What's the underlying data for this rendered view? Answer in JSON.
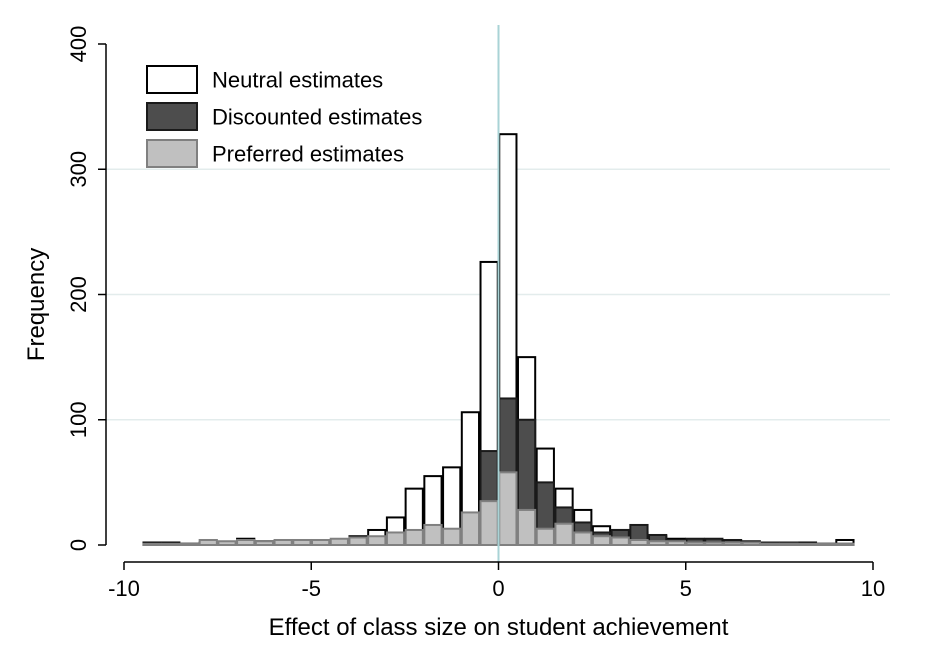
{
  "chart_data": {
    "type": "bar",
    "subtype": "overlaid-histogram",
    "title": "",
    "xlabel": "Effect of class size on student achievement",
    "ylabel": "Frequency",
    "xlim": [
      -10,
      10
    ],
    "ylim": [
      0,
      400
    ],
    "xticks": [
      -10,
      -5,
      0,
      5,
      10
    ],
    "yticks": [
      0,
      100,
      200,
      300,
      400
    ],
    "bin_width": 0.5,
    "bin_starts": [
      -9.5,
      -9.0,
      -8.5,
      -8.0,
      -7.5,
      -7.0,
      -6.5,
      -6.0,
      -5.5,
      -5.0,
      -4.5,
      -4.0,
      -3.5,
      -3.0,
      -2.5,
      -2.0,
      -1.5,
      -1.0,
      -0.5,
      0.0,
      0.5,
      1.0,
      1.5,
      2.0,
      2.5,
      3.0,
      3.5,
      4.0,
      4.5,
      5.0,
      5.5,
      6.0,
      6.5,
      7.0,
      7.5,
      8.0,
      8.5,
      9.0
    ],
    "vertical_reference_line": 0,
    "grid": "horizontal",
    "legend_position": "top-left",
    "series": [
      {
        "name": "Neutral estimates",
        "fill": "#ffffff",
        "stroke": "#000000",
        "values": [
          2,
          2,
          1,
          2,
          2,
          5,
          3,
          3,
          3,
          3,
          4,
          7,
          12,
          22,
          45,
          55,
          62,
          106,
          226,
          328,
          150,
          77,
          45,
          28,
          15,
          12,
          10,
          7,
          5,
          4,
          4,
          3,
          2,
          2,
          2,
          2,
          1,
          4
        ]
      },
      {
        "name": "Discounted estimates",
        "fill": "#4d4d4d",
        "stroke": "#1a1a1a",
        "values": [
          1,
          1,
          1,
          1,
          1,
          2,
          2,
          2,
          2,
          2,
          2,
          3,
          3,
          4,
          5,
          6,
          7,
          18,
          75,
          117,
          100,
          50,
          30,
          18,
          10,
          12,
          16,
          8,
          4,
          5,
          5,
          4,
          3,
          2,
          2,
          1,
          1,
          1
        ]
      },
      {
        "name": "Preferred estimates",
        "fill": "#c0c0c0",
        "stroke": "#808080",
        "values": [
          1,
          1,
          1,
          4,
          3,
          4,
          3,
          4,
          4,
          4,
          5,
          6,
          7,
          10,
          12,
          16,
          13,
          26,
          35,
          58,
          28,
          13,
          17,
          10,
          7,
          6,
          4,
          3,
          3,
          2,
          2,
          2,
          2,
          1,
          1,
          1,
          1,
          1
        ]
      }
    ]
  }
}
